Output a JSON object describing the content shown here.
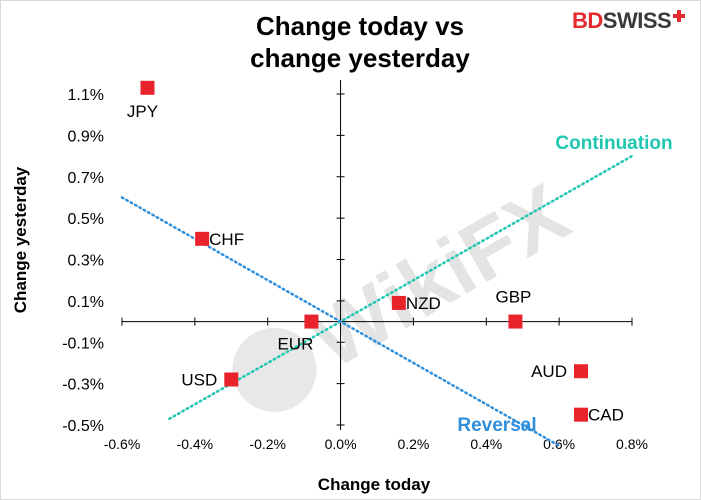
{
  "brand": {
    "part1": "BD",
    "part2": "SWISS"
  },
  "watermark": "WikiFX",
  "chart_data": {
    "type": "scatter",
    "title": "Change today vs change yesterday",
    "title_lines": [
      "Change today vs",
      "change yesterday"
    ],
    "xlabel": "Change today",
    "ylabel": "Change yesterday",
    "xlim": [
      -0.6,
      0.8
    ],
    "ylim": [
      -0.5,
      1.2
    ],
    "x_ticks": [
      -0.6,
      -0.4,
      -0.2,
      0.0,
      0.2,
      0.4,
      0.6,
      0.8
    ],
    "x_tick_labels": [
      "-0.6%",
      "-0.4%",
      "-0.2%",
      "0.0%",
      "0.2%",
      "0.4%",
      "0.6%",
      "0.8%"
    ],
    "y_ticks": [
      1.1,
      0.9,
      0.7,
      0.5,
      0.3,
      0.1,
      -0.1,
      -0.3,
      -0.5
    ],
    "y_tick_labels": [
      "1.1%",
      "0.9%",
      "0.7%",
      "0.5%",
      "0.3%",
      "0.1%",
      "-0.1%",
      "-0.3%",
      "-0.5%"
    ],
    "grid": false,
    "point_color": "#e8232b",
    "points": [
      {
        "label": "JPY",
        "x": -0.53,
        "y": 1.13,
        "label_pos": "below"
      },
      {
        "label": "CHF",
        "x": -0.38,
        "y": 0.4,
        "label_pos": "right"
      },
      {
        "label": "NZD",
        "x": 0.16,
        "y": 0.09,
        "label_pos": "right"
      },
      {
        "label": "GBP",
        "x": 0.48,
        "y": 0.0,
        "label_pos": "above"
      },
      {
        "label": "EUR",
        "x": -0.08,
        "y": 0.0,
        "label_pos": "below-left"
      },
      {
        "label": "USD",
        "x": -0.3,
        "y": -0.28,
        "label_pos": "left"
      },
      {
        "label": "AUD",
        "x": 0.66,
        "y": -0.24,
        "label_pos": "left"
      },
      {
        "label": "CAD",
        "x": 0.66,
        "y": -0.45,
        "label_pos": "right"
      }
    ],
    "lines": [
      {
        "name": "Continuation",
        "color": "#1fc7b0",
        "from": [
          -0.47,
          -0.47
        ],
        "to": [
          0.8,
          0.8
        ],
        "annotation": "Continuation"
      },
      {
        "name": "Reversal",
        "color": "#2f8fdc",
        "from": [
          -0.6,
          0.6
        ],
        "to": [
          0.6,
          -0.6
        ],
        "annotation": "Reversal"
      }
    ]
  }
}
